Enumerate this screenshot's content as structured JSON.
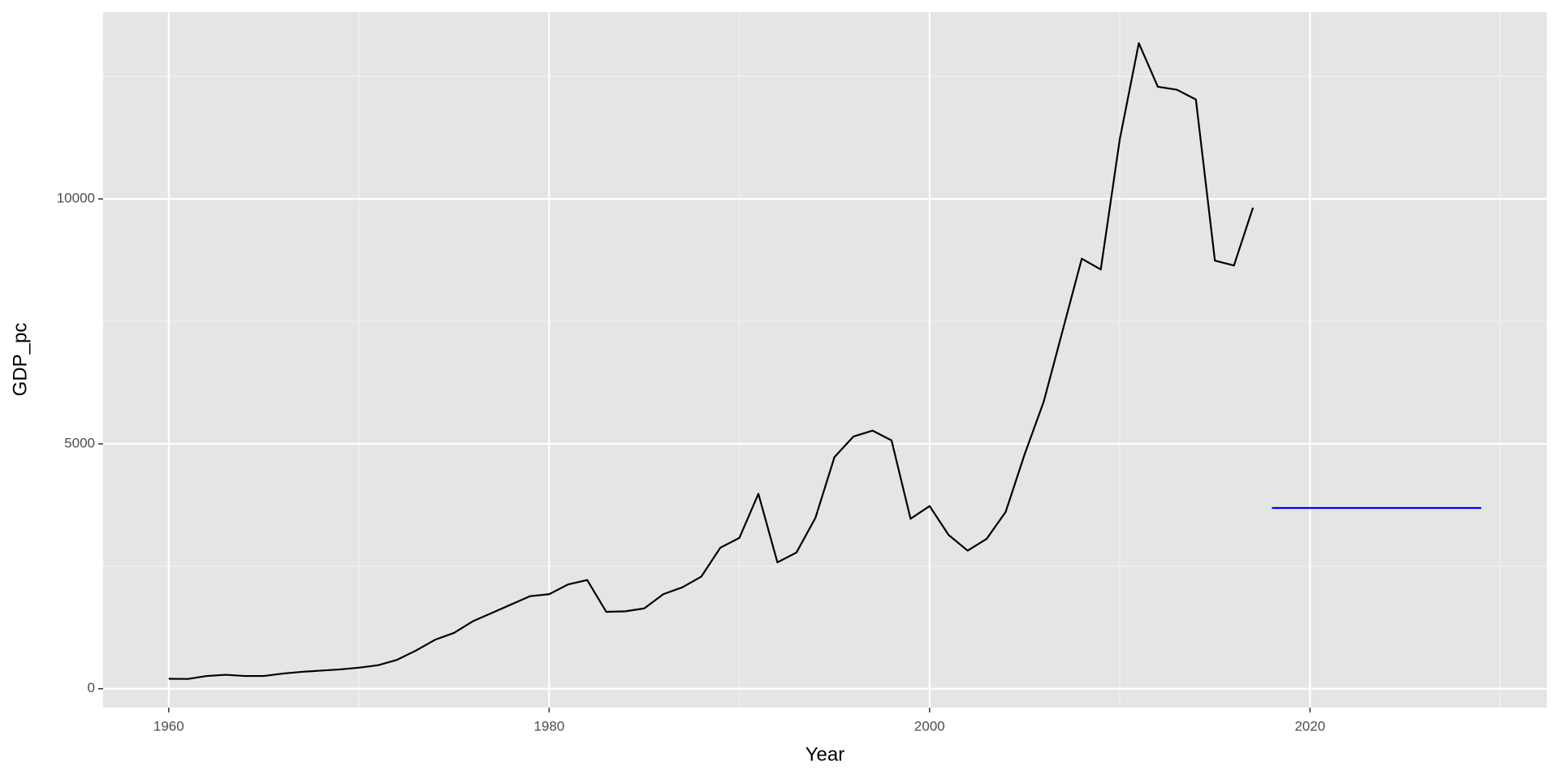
{
  "chart_data": {
    "type": "line",
    "x_label": "Year",
    "y_label": "GDP_pc",
    "series": [
      {
        "color": "#000000",
        "x": [
          1960,
          1961,
          1962,
          1963,
          1964,
          1965,
          1966,
          1967,
          1968,
          1969,
          1970,
          1971,
          1972,
          1973,
          1974,
          1975,
          1976,
          1977,
          1978,
          1979,
          1980,
          1981,
          1982,
          1983,
          1984,
          1985,
          1986,
          1987,
          1988,
          1989,
          1990,
          1991,
          1992,
          1993,
          1994,
          1995,
          1996,
          1997,
          1998,
          1999,
          2000,
          2001,
          2002,
          2003,
          2004,
          2005,
          2006,
          2007,
          2008,
          2009,
          2010,
          2011,
          2012,
          2013,
          2014,
          2015,
          2016,
          2017
        ],
        "values": [
          203,
          200,
          260,
          285,
          260,
          260,
          310,
          345,
          370,
          395,
          430,
          480,
          590,
          780,
          1000,
          1140,
          1380,
          1550,
          1720,
          1890,
          1930,
          2130,
          2220,
          1570,
          1580,
          1640,
          1930,
          2070,
          2290,
          2880,
          3080,
          3980,
          2580,
          2780,
          3490,
          4730,
          5150,
          5270,
          5070,
          3470,
          3730,
          3140,
          2820,
          3060,
          3610,
          4790,
          5860,
          7320,
          8780,
          8560,
          11220,
          13180,
          12290,
          12230,
          12030,
          8740,
          8640,
          9820
        ]
      },
      {
        "color": "#0000ff",
        "x": [
          2018,
          2019,
          2020,
          2021,
          2022,
          2023,
          2024,
          2025,
          2026,
          2027,
          2028,
          2029
        ],
        "values": [
          3690,
          3690,
          3690,
          3690,
          3690,
          3690,
          3690,
          3690,
          3690,
          3690,
          3690,
          3690
        ]
      }
    ],
    "xlim": [
      1956.55,
      2032.45
    ],
    "xticks": [
      1960,
      1980,
      2000,
      2020
    ],
    "xminor": [
      1970,
      1990,
      2010,
      2030
    ],
    "ylim": [
      -385,
      13813
    ],
    "yticks": [
      0,
      5000,
      10000
    ],
    "yminor": [
      2500,
      7500,
      12500
    ],
    "grid": true
  }
}
